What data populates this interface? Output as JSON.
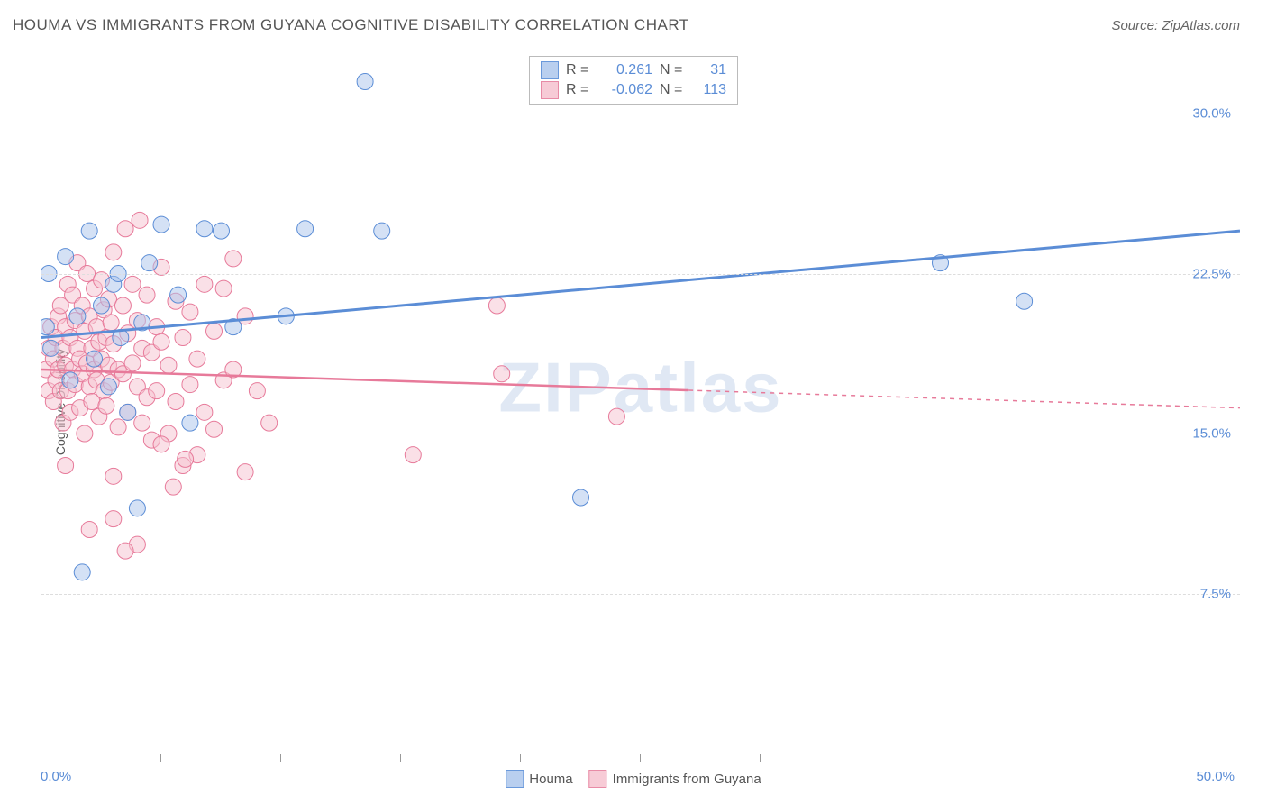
{
  "title": "HOUMA VS IMMIGRANTS FROM GUYANA COGNITIVE DISABILITY CORRELATION CHART",
  "source": "Source: ZipAtlas.com",
  "watermark": "ZIPatlas",
  "y_axis_label": "Cognitive Disability",
  "chart": {
    "type": "scatter",
    "xlim": [
      0,
      50
    ],
    "ylim": [
      0,
      33
    ],
    "x_ticks_labeled": [
      {
        "value": 0,
        "label": "0.0%"
      },
      {
        "value": 50,
        "label": "50.0%"
      }
    ],
    "x_ticks_minor": [
      5,
      10,
      15,
      20,
      25,
      30
    ],
    "y_ticks": [
      {
        "value": 7.5,
        "label": "7.5%"
      },
      {
        "value": 15.0,
        "label": "15.0%"
      },
      {
        "value": 22.5,
        "label": "22.5%"
      },
      {
        "value": 30.0,
        "label": "30.0%"
      }
    ],
    "background_color": "#ffffff",
    "grid_color": "#dddddd",
    "point_radius": 9,
    "point_opacity": 0.5,
    "series": [
      {
        "name": "Houma",
        "swatch_fill": "#b9cfef",
        "swatch_border": "#6a99db",
        "color_fill": "#a9c4ec",
        "color_stroke": "#5b8dd6",
        "r": 0.261,
        "n": 31,
        "regression": {
          "x1": 0,
          "y1": 19.5,
          "x2": 50,
          "y2": 24.5,
          "dashed_from": null,
          "stroke_width": 3
        },
        "points": [
          [
            0.3,
            22.5
          ],
          [
            0.2,
            20.0
          ],
          [
            0.4,
            19.0
          ],
          [
            1.0,
            23.3
          ],
          [
            1.2,
            17.5
          ],
          [
            1.5,
            20.5
          ],
          [
            2.0,
            24.5
          ],
          [
            2.2,
            18.5
          ],
          [
            2.5,
            21.0
          ],
          [
            2.8,
            17.2
          ],
          [
            3.0,
            22.0
          ],
          [
            3.3,
            19.5
          ],
          [
            3.6,
            16.0
          ],
          [
            4.0,
            11.5
          ],
          [
            4.2,
            20.2
          ],
          [
            4.5,
            23.0
          ],
          [
            5.0,
            24.8
          ],
          [
            5.7,
            21.5
          ],
          [
            6.2,
            15.5
          ],
          [
            6.8,
            24.6
          ],
          [
            7.5,
            24.5
          ],
          [
            8.0,
            20.0
          ],
          [
            10.2,
            20.5
          ],
          [
            11.0,
            24.6
          ],
          [
            13.5,
            31.5
          ],
          [
            14.2,
            24.5
          ],
          [
            22.5,
            12.0
          ],
          [
            37.5,
            23.0
          ],
          [
            41.0,
            21.2
          ],
          [
            1.7,
            8.5
          ],
          [
            3.2,
            22.5
          ]
        ]
      },
      {
        "name": "Immigrants from Guyana",
        "swatch_fill": "#f7cbd6",
        "swatch_border": "#e88ba6",
        "color_fill": "#f5c1cf",
        "color_stroke": "#e77a9a",
        "r": -0.062,
        "n": 113,
        "regression": {
          "x1": 0,
          "y1": 18.0,
          "x2": 50,
          "y2": 16.2,
          "dashed_from": 27,
          "stroke_width": 2.5
        },
        "points": [
          [
            0.2,
            18.0
          ],
          [
            0.3,
            19.0
          ],
          [
            0.3,
            17.0
          ],
          [
            0.4,
            20.0
          ],
          [
            0.5,
            18.5
          ],
          [
            0.5,
            16.5
          ],
          [
            0.6,
            19.5
          ],
          [
            0.6,
            17.5
          ],
          [
            0.7,
            20.5
          ],
          [
            0.7,
            18.0
          ],
          [
            0.8,
            21.0
          ],
          [
            0.8,
            17.0
          ],
          [
            0.9,
            19.0
          ],
          [
            0.9,
            15.5
          ],
          [
            1.0,
            20.0
          ],
          [
            1.0,
            18.2
          ],
          [
            1.1,
            22.0
          ],
          [
            1.1,
            17.0
          ],
          [
            1.2,
            19.5
          ],
          [
            1.2,
            16.0
          ],
          [
            1.3,
            21.5
          ],
          [
            1.3,
            18.0
          ],
          [
            1.4,
            20.3
          ],
          [
            1.4,
            17.3
          ],
          [
            1.5,
            23.0
          ],
          [
            1.5,
            19.0
          ],
          [
            1.6,
            18.5
          ],
          [
            1.6,
            16.2
          ],
          [
            1.7,
            21.0
          ],
          [
            1.7,
            17.8
          ],
          [
            1.8,
            19.8
          ],
          [
            1.8,
            15.0
          ],
          [
            1.9,
            22.5
          ],
          [
            1.9,
            18.3
          ],
          [
            2.0,
            20.5
          ],
          [
            2.0,
            17.2
          ],
          [
            2.1,
            19.0
          ],
          [
            2.1,
            16.5
          ],
          [
            2.2,
            21.8
          ],
          [
            2.2,
            18.0
          ],
          [
            2.3,
            20.0
          ],
          [
            2.3,
            17.5
          ],
          [
            2.4,
            19.3
          ],
          [
            2.4,
            15.8
          ],
          [
            2.5,
            22.2
          ],
          [
            2.5,
            18.5
          ],
          [
            2.6,
            20.8
          ],
          [
            2.6,
            17.0
          ],
          [
            2.7,
            19.5
          ],
          [
            2.7,
            16.3
          ],
          [
            2.8,
            21.3
          ],
          [
            2.8,
            18.2
          ],
          [
            2.9,
            20.2
          ],
          [
            2.9,
            17.4
          ],
          [
            3.0,
            23.5
          ],
          [
            3.0,
            19.2
          ],
          [
            3.2,
            18.0
          ],
          [
            3.2,
            15.3
          ],
          [
            3.4,
            21.0
          ],
          [
            3.4,
            17.8
          ],
          [
            3.6,
            19.7
          ],
          [
            3.6,
            16.0
          ],
          [
            3.8,
            22.0
          ],
          [
            3.8,
            18.3
          ],
          [
            4.0,
            20.3
          ],
          [
            4.0,
            17.2
          ],
          [
            4.2,
            19.0
          ],
          [
            4.2,
            15.5
          ],
          [
            4.4,
            21.5
          ],
          [
            4.4,
            16.7
          ],
          [
            4.6,
            18.8
          ],
          [
            4.6,
            14.7
          ],
          [
            4.8,
            20.0
          ],
          [
            4.8,
            17.0
          ],
          [
            5.0,
            22.8
          ],
          [
            5.0,
            19.3
          ],
          [
            5.3,
            18.2
          ],
          [
            5.3,
            15.0
          ],
          [
            5.6,
            21.2
          ],
          [
            5.6,
            16.5
          ],
          [
            5.9,
            19.5
          ],
          [
            5.9,
            13.5
          ],
          [
            6.2,
            20.7
          ],
          [
            6.2,
            17.3
          ],
          [
            6.5,
            18.5
          ],
          [
            6.5,
            14.0
          ],
          [
            6.8,
            22.0
          ],
          [
            6.8,
            16.0
          ],
          [
            7.2,
            19.8
          ],
          [
            7.2,
            15.2
          ],
          [
            7.6,
            21.8
          ],
          [
            7.6,
            17.5
          ],
          [
            8.0,
            23.2
          ],
          [
            8.0,
            18.0
          ],
          [
            8.5,
            20.5
          ],
          [
            8.5,
            13.2
          ],
          [
            9.0,
            17.0
          ],
          [
            9.5,
            15.5
          ],
          [
            3.5,
            24.6
          ],
          [
            4.1,
            25.0
          ],
          [
            2.0,
            10.5
          ],
          [
            3.0,
            11.0
          ],
          [
            4.0,
            9.8
          ],
          [
            3.0,
            13.0
          ],
          [
            3.5,
            9.5
          ],
          [
            15.5,
            14.0
          ],
          [
            19.0,
            21.0
          ],
          [
            19.2,
            17.8
          ],
          [
            24.0,
            15.8
          ],
          [
            5.5,
            12.5
          ],
          [
            6.0,
            13.8
          ],
          [
            5.0,
            14.5
          ],
          [
            1.0,
            13.5
          ]
        ]
      }
    ]
  },
  "bottom_legend": [
    {
      "label": "Houma",
      "fill": "#b9cfef",
      "border": "#6a99db"
    },
    {
      "label": "Immigrants from Guyana",
      "fill": "#f7cbd6",
      "border": "#e88ba6"
    }
  ]
}
